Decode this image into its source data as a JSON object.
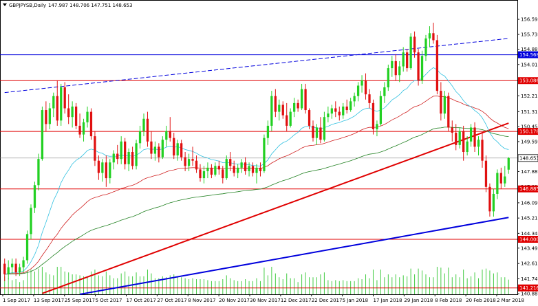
{
  "header": {
    "symbol": "GBPJPYSB,Daily",
    "ohlc": "147.987 148.706 147.751 148.653"
  },
  "colors": {
    "bull": "#22d022",
    "bear": "#e01010",
    "red_line": "#e00000",
    "blue_line": "#0000dd",
    "ma_fast": "#30c0e0",
    "ma_mid": "#d02020",
    "ma_slow": "#208020",
    "volume": "#44cc44"
  },
  "chart_data": {
    "type": "candlestick",
    "symbol": "GBPJPYSB",
    "timeframe": "Daily",
    "last_ohlc": {
      "open": 147.987,
      "high": 148.706,
      "low": 147.751,
      "close": 148.653
    },
    "ylim": [
      140.85,
      157.15
    ],
    "y_ticks": [
      156.595,
      155.73,
      154.88,
      154.01,
      153.15,
      152.215,
      151.31,
      150.45,
      149.595,
      148.73,
      147.88,
      147.015,
      146.09,
      145.215,
      144.34,
      143.495,
      142.615,
      141.74,
      140.88
    ],
    "x_ticks": [
      "1 Sep 2017",
      "13 Sep 2017",
      "25 Sep 2017",
      "5 Oct 2017",
      "17 Oct 2017",
      "27 Oct 2017",
      "8 Nov 2017",
      "20 Nov 2017",
      "30 Nov 2017",
      "12 Dec 2017",
      "22 Dec 2017",
      "5 Jan 2018",
      "17 Jan 2018",
      "29 Jan 2018",
      "8 Feb 2018",
      "20 Feb 2018",
      "2 Mar 2018"
    ],
    "horizontal_levels": [
      {
        "value": 154.568,
        "color": "#0000dd",
        "label": "154.568"
      },
      {
        "value": 153.086,
        "color": "#e00000",
        "label": "153.086"
      },
      {
        "value": 150.178,
        "color": "#e00000",
        "label": "150.178"
      },
      {
        "value": 146.885,
        "color": "#e00000",
        "label": "146.885"
      },
      {
        "value": 144.0,
        "color": "#e00000",
        "label": "144.000"
      },
      {
        "value": 141.216,
        "color": "#e00000",
        "label": "141.216"
      }
    ],
    "current_price": {
      "value": 148.653,
      "label": "148.653"
    },
    "trendlines": [
      {
        "name": "dashed-resistance",
        "color": "#0000dd",
        "dashed": true,
        "start": {
          "bar": 0,
          "price": 152.4
        },
        "end": {
          "bar": 134,
          "price": 155.5
        }
      },
      {
        "name": "red-support",
        "color": "#e00000",
        "dashed": false,
        "start": {
          "bar": 10,
          "price": 140.9
        },
        "end": {
          "bar": 134,
          "price": 150.65
        }
      },
      {
        "name": "blue-support",
        "color": "#0000dd",
        "dashed": false,
        "start": {
          "bar": 20,
          "price": 140.85
        },
        "end": {
          "bar": 134,
          "price": 145.25
        }
      }
    ],
    "candles": [
      [
        142.6,
        142.9,
        141.6,
        142.0
      ],
      [
        142.0,
        142.8,
        141.7,
        142.4
      ],
      [
        142.4,
        142.9,
        142.0,
        142.6
      ],
      [
        142.6,
        142.9,
        141.9,
        142.1
      ],
      [
        142.1,
        142.6,
        141.9,
        142.4
      ],
      [
        142.4,
        143.0,
        142.1,
        142.8
      ],
      [
        142.8,
        144.5,
        142.6,
        144.3
      ],
      [
        144.3,
        146.0,
        144.0,
        145.8
      ],
      [
        145.8,
        147.3,
        145.5,
        147.1
      ],
      [
        147.1,
        148.9,
        146.8,
        148.6
      ],
      [
        148.6,
        151.6,
        148.5,
        151.4
      ],
      [
        151.4,
        151.9,
        150.2,
        150.6
      ],
      [
        150.6,
        151.8,
        150.3,
        151.5
      ],
      [
        151.5,
        152.4,
        151.0,
        152.2
      ],
      [
        152.2,
        153.1,
        150.5,
        150.8
      ],
      [
        150.8,
        152.9,
        150.5,
        152.7
      ],
      [
        152.7,
        153.0,
        151.2,
        151.5
      ],
      [
        151.5,
        152.3,
        150.6,
        151.0
      ],
      [
        151.0,
        151.9,
        150.4,
        151.6
      ],
      [
        151.6,
        151.8,
        150.3,
        150.5
      ],
      [
        150.5,
        151.2,
        149.8,
        150.0
      ],
      [
        150.0,
        150.9,
        149.6,
        150.7
      ],
      [
        150.7,
        151.6,
        150.4,
        151.3
      ],
      [
        151.3,
        151.5,
        149.7,
        149.9
      ],
      [
        149.9,
        150.2,
        148.2,
        148.5
      ],
      [
        148.5,
        148.8,
        147.4,
        147.8
      ],
      [
        147.8,
        148.6,
        147.3,
        148.4
      ],
      [
        148.4,
        148.8,
        147.0,
        147.5
      ],
      [
        147.5,
        148.6,
        147.2,
        148.4
      ],
      [
        148.4,
        149.1,
        148.0,
        148.9
      ],
      [
        148.9,
        149.4,
        148.3,
        148.6
      ],
      [
        148.6,
        149.9,
        148.3,
        149.6
      ],
      [
        149.6,
        149.8,
        148.0,
        148.3
      ],
      [
        148.3,
        149.2,
        147.9,
        149.0
      ],
      [
        149.0,
        149.3,
        148.0,
        148.2
      ],
      [
        148.2,
        149.7,
        148.0,
        149.5
      ],
      [
        149.5,
        150.5,
        149.2,
        150.2
      ],
      [
        150.2,
        151.2,
        149.9,
        150.9
      ],
      [
        150.9,
        151.3,
        149.3,
        149.6
      ],
      [
        149.6,
        150.2,
        148.6,
        148.9
      ],
      [
        148.9,
        149.6,
        148.5,
        149.3
      ],
      [
        149.3,
        149.5,
        148.4,
        148.7
      ],
      [
        148.7,
        149.9,
        148.6,
        149.7
      ],
      [
        149.7,
        150.5,
        149.3,
        150.2
      ],
      [
        150.2,
        151.0,
        149.6,
        149.8
      ],
      [
        149.8,
        150.1,
        148.6,
        148.8
      ],
      [
        148.8,
        149.7,
        148.5,
        149.5
      ],
      [
        149.5,
        149.7,
        148.5,
        148.7
      ],
      [
        148.7,
        149.0,
        147.9,
        148.2
      ],
      [
        148.2,
        148.9,
        147.9,
        148.6
      ],
      [
        148.6,
        149.3,
        148.2,
        148.5
      ],
      [
        148.5,
        148.8,
        147.8,
        148.0
      ],
      [
        148.0,
        148.3,
        147.3,
        147.5
      ],
      [
        147.5,
        148.2,
        147.2,
        147.9
      ],
      [
        147.9,
        148.4,
        147.5,
        148.1
      ],
      [
        148.1,
        148.3,
        147.5,
        147.7
      ],
      [
        147.7,
        148.4,
        147.6,
        148.2
      ],
      [
        148.2,
        148.5,
        147.7,
        148.0
      ],
      [
        148.0,
        148.2,
        147.2,
        147.5
      ],
      [
        147.5,
        148.8,
        147.4,
        148.6
      ],
      [
        148.6,
        149.0,
        147.9,
        148.2
      ],
      [
        148.2,
        148.5,
        147.6,
        147.8
      ],
      [
        147.8,
        148.3,
        147.5,
        148.1
      ],
      [
        148.1,
        148.6,
        147.8,
        148.4
      ],
      [
        148.4,
        148.7,
        147.7,
        147.9
      ],
      [
        147.9,
        148.4,
        147.6,
        148.2
      ],
      [
        148.2,
        148.4,
        147.6,
        147.8
      ],
      [
        147.8,
        148.3,
        147.2,
        148.1
      ],
      [
        148.1,
        148.4,
        147.6,
        147.9
      ],
      [
        147.9,
        150.0,
        147.8,
        149.8
      ],
      [
        149.8,
        150.8,
        149.4,
        150.5
      ],
      [
        150.5,
        152.5,
        150.2,
        152.2
      ],
      [
        152.2,
        152.6,
        151.0,
        151.3
      ],
      [
        151.3,
        152.0,
        150.8,
        151.7
      ],
      [
        151.7,
        151.9,
        150.9,
        151.1
      ],
      [
        151.1,
        151.8,
        150.2,
        150.5
      ],
      [
        150.5,
        151.5,
        150.4,
        151.3
      ],
      [
        151.3,
        152.1,
        151.0,
        151.8
      ],
      [
        151.8,
        152.0,
        151.3,
        151.5
      ],
      [
        151.5,
        152.9,
        151.4,
        152.6
      ],
      [
        152.6,
        152.9,
        151.2,
        151.4
      ],
      [
        151.4,
        151.5,
        150.3,
        150.5
      ],
      [
        150.5,
        150.8,
        149.6,
        149.8
      ],
      [
        149.8,
        150.6,
        149.4,
        150.4
      ],
      [
        150.4,
        151.0,
        149.5,
        149.7
      ],
      [
        149.7,
        151.3,
        149.6,
        151.0
      ],
      [
        151.0,
        151.6,
        150.7,
        151.2
      ],
      [
        151.2,
        151.7,
        150.9,
        151.5
      ],
      [
        151.5,
        151.9,
        151.0,
        151.3
      ],
      [
        151.3,
        151.6,
        150.8,
        151.1
      ],
      [
        151.1,
        151.8,
        150.9,
        151.6
      ],
      [
        151.6,
        152.0,
        151.2,
        151.4
      ],
      [
        151.4,
        152.1,
        151.3,
        151.9
      ],
      [
        151.9,
        152.4,
        151.6,
        152.2
      ],
      [
        152.2,
        153.0,
        151.9,
        152.8
      ],
      [
        152.8,
        153.4,
        152.4,
        153.1
      ],
      [
        153.1,
        153.5,
        152.0,
        152.3
      ],
      [
        152.3,
        152.6,
        151.5,
        151.8
      ],
      [
        151.8,
        152.0,
        150.0,
        150.3
      ],
      [
        150.3,
        150.8,
        149.9,
        150.6
      ],
      [
        150.6,
        152.5,
        150.5,
        152.2
      ],
      [
        152.2,
        153.0,
        151.8,
        152.7
      ],
      [
        152.7,
        154.0,
        152.5,
        153.8
      ],
      [
        153.8,
        154.5,
        153.3,
        154.2
      ],
      [
        154.2,
        154.6,
        153.1,
        153.4
      ],
      [
        153.4,
        154.2,
        153.0,
        153.9
      ],
      [
        153.9,
        155.0,
        153.6,
        154.7
      ],
      [
        154.7,
        154.9,
        153.6,
        153.8
      ],
      [
        153.8,
        155.8,
        153.7,
        155.6
      ],
      [
        155.6,
        155.9,
        154.4,
        154.7
      ],
      [
        154.7,
        154.9,
        152.8,
        153.1
      ],
      [
        153.1,
        154.8,
        152.9,
        154.5
      ],
      [
        154.5,
        155.7,
        154.2,
        155.5
      ],
      [
        155.5,
        156.2,
        155.0,
        155.8
      ],
      [
        155.8,
        156.4,
        155.2,
        155.4
      ],
      [
        155.4,
        155.7,
        152.3,
        152.5
      ],
      [
        152.5,
        153.0,
        150.8,
        151.2
      ],
      [
        151.2,
        152.5,
        150.9,
        152.2
      ],
      [
        152.2,
        152.4,
        150.2,
        150.4
      ],
      [
        150.4,
        150.8,
        149.6,
        150.1
      ],
      [
        150.1,
        150.6,
        149.1,
        149.4
      ],
      [
        149.4,
        150.4,
        149.2,
        150.2
      ],
      [
        150.2,
        150.5,
        148.5,
        149.0
      ],
      [
        149.0,
        149.9,
        148.8,
        149.6
      ],
      [
        149.6,
        150.6,
        149.3,
        150.4
      ],
      [
        150.4,
        150.7,
        149.0,
        149.3
      ],
      [
        149.3,
        149.9,
        148.8,
        149.7
      ],
      [
        149.7,
        150.1,
        148.1,
        148.5
      ],
      [
        148.5,
        148.8,
        146.7,
        147.0
      ],
      [
        147.0,
        147.2,
        145.3,
        145.6
      ],
      [
        145.6,
        146.9,
        145.3,
        146.6
      ],
      [
        146.6,
        148.0,
        146.3,
        147.8
      ],
      [
        147.8,
        148.1,
        146.9,
        147.2
      ],
      [
        147.2,
        148.2,
        147.0,
        147.6
      ],
      [
        147.987,
        148.706,
        147.751,
        148.653
      ]
    ]
  }
}
